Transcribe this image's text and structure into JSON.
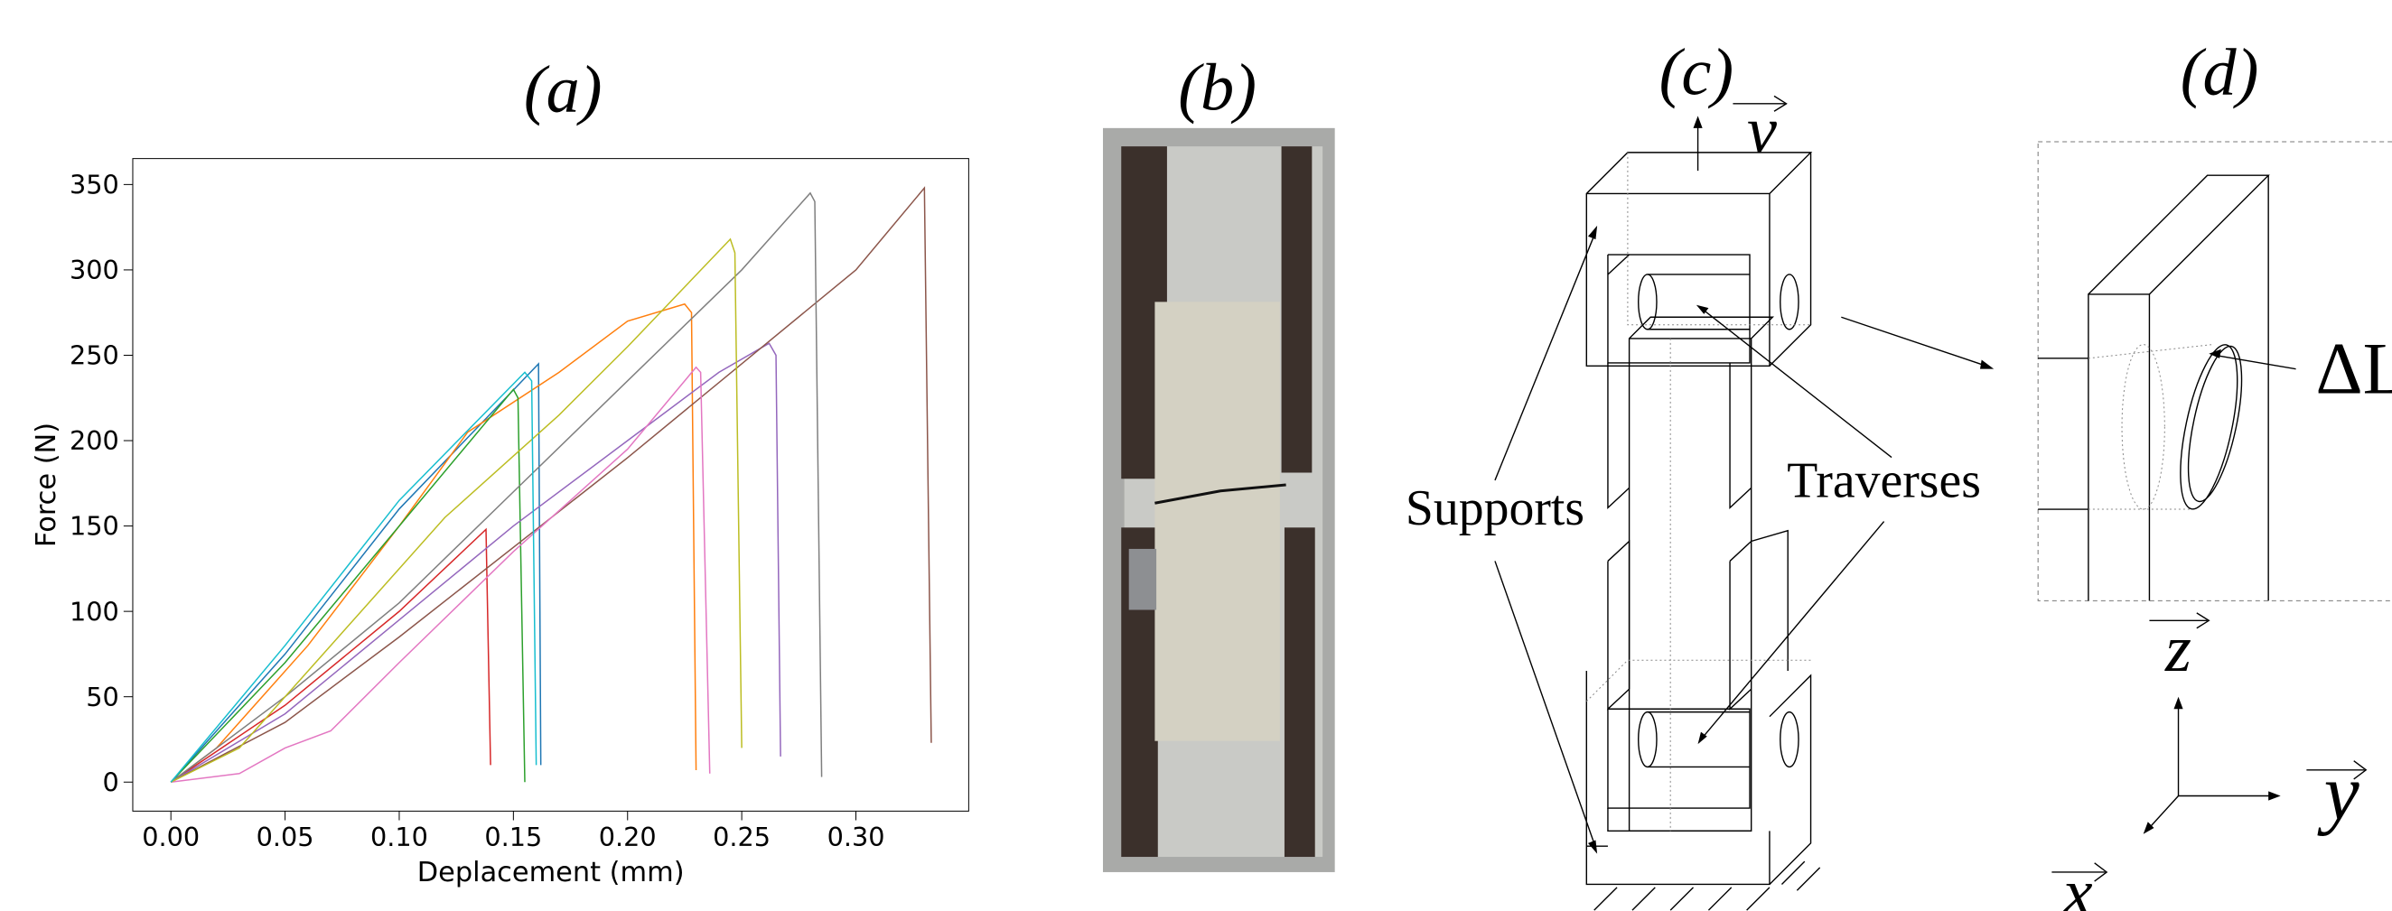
{
  "chart_data": {
    "type": "line",
    "title": "(a)",
    "xlabel": "Deplacement (mm)",
    "ylabel": "Force (N)",
    "xlim": [
      -0.0167,
      0.3494
    ],
    "ylim": [
      -17,
      365.2
    ],
    "xticks": [
      {
        "value": 0,
        "label": "0.00"
      },
      {
        "value": 0.05,
        "label": "0.05"
      },
      {
        "value": 0.1,
        "label": "0.10"
      },
      {
        "value": 0.15,
        "label": "0.15"
      },
      {
        "value": 0.2,
        "label": "0.20"
      },
      {
        "value": 0.25,
        "label": "0.25"
      },
      {
        "value": 0.3,
        "label": "0.30"
      }
    ],
    "yticks": [
      0,
      50,
      100,
      150,
      200,
      250,
      300,
      350
    ],
    "series": [
      {
        "color": "#1f77b4",
        "x": [
          0,
          0.05,
          0.1,
          0.161,
          0.162
        ],
        "values": [
          0,
          75,
          160,
          245,
          10
        ]
      },
      {
        "color": "#ff7f0e",
        "x": [
          0,
          0.02,
          0.06,
          0.1,
          0.13,
          0.17,
          0.2,
          0.225,
          0.228,
          0.23
        ],
        "values": [
          0,
          20,
          80,
          150,
          205,
          240,
          270,
          280,
          275,
          7
        ]
      },
      {
        "color": "#2ca02c",
        "x": [
          0,
          0.05,
          0.1,
          0.15,
          0.152,
          0.155
        ],
        "values": [
          0,
          70,
          150,
          230,
          225,
          0
        ]
      },
      {
        "color": "#d62728",
        "x": [
          0,
          0.05,
          0.1,
          0.138,
          0.14
        ],
        "values": [
          0,
          45,
          100,
          148,
          10
        ]
      },
      {
        "color": "#9467bd",
        "x": [
          0,
          0.05,
          0.1,
          0.15,
          0.2,
          0.24,
          0.262,
          0.265,
          0.267
        ],
        "values": [
          0,
          40,
          95,
          150,
          200,
          240,
          257,
          250,
          15
        ]
      },
      {
        "color": "#8c564b",
        "x": [
          0,
          0.05,
          0.1,
          0.2,
          0.25,
          0.3,
          0.33,
          0.333
        ],
        "values": [
          0,
          35,
          85,
          190,
          245,
          300,
          348,
          23
        ]
      },
      {
        "color": "#e377c2",
        "x": [
          0,
          0.03,
          0.05,
          0.07,
          0.1,
          0.15,
          0.2,
          0.23,
          0.232,
          0.236
        ],
        "values": [
          0,
          5,
          20,
          30,
          70,
          135,
          195,
          243,
          240,
          5
        ]
      },
      {
        "color": "#7f7f7f",
        "x": [
          0,
          0.05,
          0.1,
          0.15,
          0.2,
          0.25,
          0.28,
          0.282,
          0.285
        ],
        "values": [
          0,
          50,
          105,
          170,
          235,
          300,
          345,
          340,
          3
        ]
      },
      {
        "color": "#bcbd22",
        "x": [
          0,
          0.03,
          0.07,
          0.12,
          0.17,
          0.2,
          0.245,
          0.247,
          0.25
        ],
        "values": [
          0,
          20,
          80,
          155,
          215,
          255,
          318,
          310,
          20
        ]
      },
      {
        "color": "#17becf",
        "x": [
          0,
          0.05,
          0.1,
          0.155,
          0.158,
          0.16
        ],
        "values": [
          0,
          80,
          165,
          240,
          235,
          10
        ]
      }
    ]
  },
  "labels": {
    "b": "(b)",
    "c": "(c)",
    "d": "(d)",
    "v": "v",
    "supports": "Supports",
    "traverses": "Traverses",
    "delta": "ΔL",
    "z": "z",
    "y": "y",
    "x": "x"
  }
}
